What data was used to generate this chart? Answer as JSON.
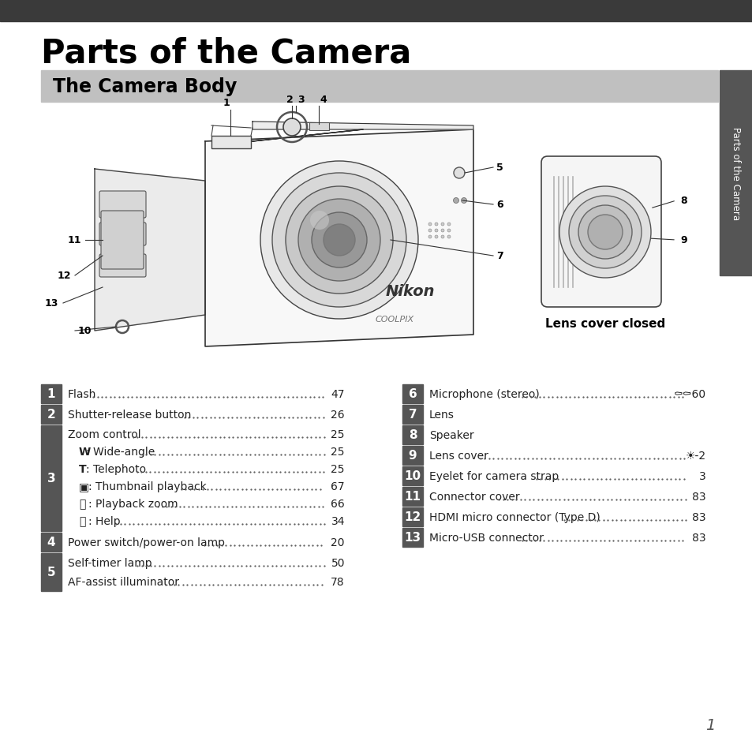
{
  "title": "Parts of the Camera",
  "section_title": "The Camera Body",
  "bg_color": "#ffffff",
  "header_bg": "#3a3a3a",
  "section_bg": "#c0c0c0",
  "label_bg": "#555555",
  "label_fg": "#ffffff",
  "sidebar_bg": "#555555",
  "page_number": "1",
  "sidebar_text": "Parts of the Camera",
  "left_entries": [
    {
      "num": "1",
      "text": "Flash",
      "dots": true,
      "page": "47",
      "sublines": []
    },
    {
      "num": "2",
      "text": "Shutter-release button",
      "dots": true,
      "page": "26",
      "sublines": []
    },
    {
      "num": "3",
      "text": "Zoom control",
      "dots": true,
      "page": "25",
      "sublines": [
        {
          "bold_prefix": "W",
          "rest": ": Wide-angle",
          "dots": true,
          "page": "25"
        },
        {
          "bold_prefix": "T",
          "rest": ": Telephoto",
          "dots": true,
          "page": "25"
        },
        {
          "bold_prefix": "▣",
          "rest": ": Thumbnail playback",
          "dots": true,
          "page": "67"
        },
        {
          "bold_prefix": "⌕",
          "rest": ": Playback zoom",
          "dots": true,
          "page": "66"
        },
        {
          "bold_prefix": "❓",
          "rest": ": Help",
          "dots": true,
          "page": "34"
        }
      ]
    },
    {
      "num": "4",
      "text": "Power switch/power-on lamp",
      "dots": true,
      "page": "20",
      "sublines": []
    },
    {
      "num": "5",
      "text": "Self-timer lamp",
      "dots": true,
      "page": "50",
      "sublines": [
        {
          "bold_prefix": "",
          "rest": "AF-assist illuminator",
          "dots": true,
          "page": "78"
        }
      ]
    }
  ],
  "right_entries": [
    {
      "num": "6",
      "text": "Microphone (stereo) ",
      "dots": true,
      "page": "⚰⚰60",
      "sublines": []
    },
    {
      "num": "7",
      "text": "Lens",
      "dots": false,
      "page": "",
      "sublines": []
    },
    {
      "num": "8",
      "text": "Speaker",
      "dots": false,
      "page": "",
      "sublines": []
    },
    {
      "num": "9",
      "text": "Lens cover ",
      "dots": true,
      "page": "☀-2",
      "sublines": []
    },
    {
      "num": "10",
      "text": "Eyelet for camera strap",
      "dots": true,
      "page": "3",
      "sublines": []
    },
    {
      "num": "11",
      "text": "Connector cover",
      "dots": true,
      "page": "83",
      "sublines": []
    },
    {
      "num": "12",
      "text": "HDMI micro connector (Type D)",
      "dots": true,
      "page": "83",
      "sublines": []
    },
    {
      "num": "13",
      "text": "Micro-USB connector ",
      "dots": true,
      "page": "83",
      "sublines": []
    }
  ]
}
